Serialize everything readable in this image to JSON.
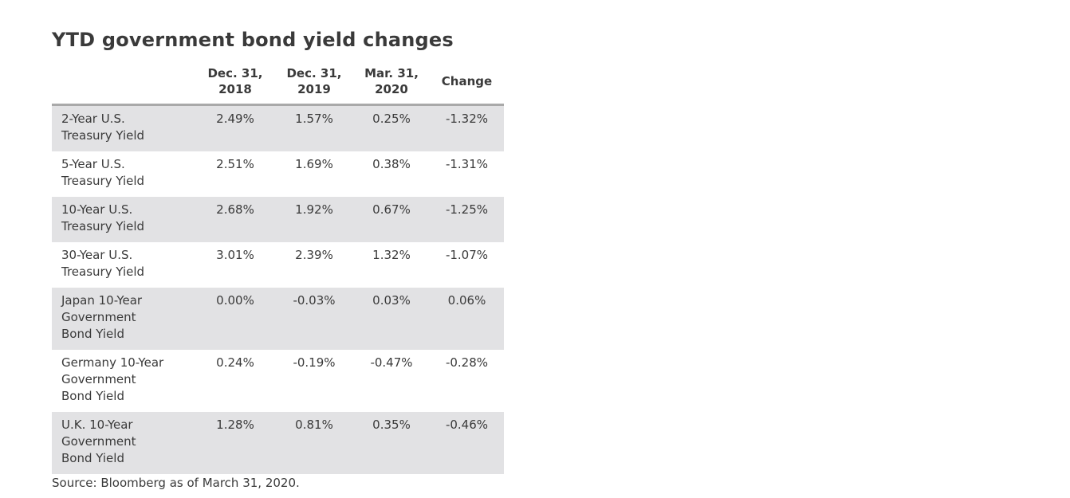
{
  "title": "YTD government bond yield changes",
  "table": {
    "headers": [
      {
        "line1": "",
        "line2": ""
      },
      {
        "line1": "Dec. 31,",
        "line2": "2018"
      },
      {
        "line1": "Dec. 31,",
        "line2": "2019"
      },
      {
        "line1": "Mar. 31,",
        "line2": "2020"
      },
      {
        "line1": "Change",
        "line2": ""
      }
    ],
    "rows": [
      {
        "label": "2-Year U.S.\nTreasury Yield",
        "v1": "2.49%",
        "v2": "1.57%",
        "v3": "0.25%",
        "change": "-1.32%",
        "shaded": true
      },
      {
        "label": "5-Year U.S.\nTreasury Yield",
        "v1": "2.51%",
        "v2": "1.69%",
        "v3": "0.38%",
        "change": "-1.31%",
        "shaded": false
      },
      {
        "label": "10-Year U.S.\nTreasury Yield",
        "v1": "2.68%",
        "v2": "1.92%",
        "v3": "0.67%",
        "change": "-1.25%",
        "shaded": true
      },
      {
        "label": "30-Year U.S.\nTreasury Yield",
        "v1": "3.01%",
        "v2": "2.39%",
        "v3": "1.32%",
        "change": "-1.07%",
        "shaded": false
      },
      {
        "label": "Japan 10-Year\nGovernment\nBond Yield",
        "v1": "0.00%",
        "v2": "-0.03%",
        "v3": "0.03%",
        "change": "0.06%",
        "shaded": true
      },
      {
        "label": "Germany 10-Year\nGovernment\nBond Yield",
        "v1": "0.24%",
        "v2": "-0.19%",
        "v3": "-0.47%",
        "change": "-0.28%",
        "shaded": false
      },
      {
        "label": "U.K. 10-Year\nGovernment\nBond Yield",
        "v1": "1.28%",
        "v2": "0.81%",
        "v3": "0.35%",
        "change": "-0.46%",
        "shaded": true
      }
    ]
  },
  "source": "Source: Bloomberg as of March 31, 2020.",
  "colors": {
    "shaded_row": "#e2e2e4",
    "header_rule": "#a9a9a9",
    "text": "#3a3a3a"
  }
}
